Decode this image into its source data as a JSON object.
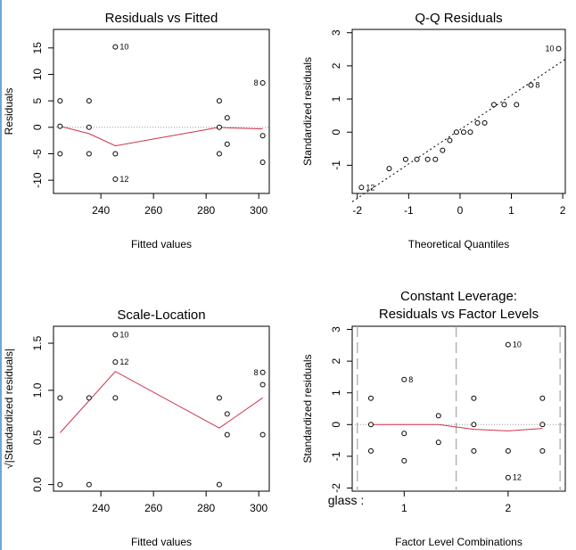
{
  "chart_data": [
    {
      "type": "scatter",
      "title": "Residuals vs Fitted",
      "xlabel": "Fitted values",
      "ylabel": "Residuals",
      "xlim": [
        222,
        304
      ],
      "ylim": [
        -12.5,
        18.5
      ],
      "xticks": [
        240,
        260,
        280,
        300
      ],
      "yticks": [
        -10,
        -5,
        0,
        5,
        10,
        15
      ],
      "refline": {
        "y": 0,
        "style": "dotted"
      },
      "points": [
        {
          "x": 224.5,
          "y": 5
        },
        {
          "x": 224.5,
          "y": 0.2
        },
        {
          "x": 224.5,
          "y": -5
        },
        {
          "x": 235.5,
          "y": 5
        },
        {
          "x": 235.5,
          "y": 0
        },
        {
          "x": 235.5,
          "y": -5
        },
        {
          "x": 245.5,
          "y": 15.2,
          "label": "10"
        },
        {
          "x": 245.5,
          "y": -5
        },
        {
          "x": 245.5,
          "y": -9.8,
          "label": "12"
        },
        {
          "x": 285,
          "y": 5
        },
        {
          "x": 285,
          "y": 0
        },
        {
          "x": 285,
          "y": -5
        },
        {
          "x": 288,
          "y": 1.8
        },
        {
          "x": 288,
          "y": -3.2
        },
        {
          "x": 301.5,
          "y": 8.4,
          "label": "8"
        },
        {
          "x": 301.5,
          "y": -1.6
        },
        {
          "x": 301.5,
          "y": -6.6
        }
      ],
      "smoother": [
        {
          "x": 224.5,
          "y": 0.2
        },
        {
          "x": 235.5,
          "y": -1.2
        },
        {
          "x": 245.5,
          "y": -3.5
        },
        {
          "x": 285,
          "y": 0
        },
        {
          "x": 288,
          "y": -0.1
        },
        {
          "x": 301.5,
          "y": -0.3
        }
      ]
    },
    {
      "type": "scatter",
      "title": "Q-Q Residuals",
      "xlabel": "Theoretical Quantiles",
      "ylabel": "Standardized residuals",
      "xlim": [
        -2.1,
        2.05
      ],
      "ylim": [
        -1.85,
        3.1
      ],
      "xticks": [
        -2,
        -1,
        0,
        1,
        2
      ],
      "yticks": [
        -1,
        0,
        1,
        2,
        3
      ],
      "refline": {
        "x1": -2.1,
        "y1": -2.1,
        "x2": 2.05,
        "y2": 2.2,
        "style": "dashed"
      },
      "points": [
        {
          "x": -1.92,
          "y": -1.67,
          "label": "12"
        },
        {
          "x": -1.38,
          "y": -1.1
        },
        {
          "x": -1.06,
          "y": -0.82
        },
        {
          "x": -0.84,
          "y": -0.82
        },
        {
          "x": -0.63,
          "y": -0.82
        },
        {
          "x": -0.48,
          "y": -0.82
        },
        {
          "x": -0.34,
          "y": -0.55
        },
        {
          "x": -0.2,
          "y": -0.25
        },
        {
          "x": -0.07,
          "y": 0
        },
        {
          "x": 0.07,
          "y": 0
        },
        {
          "x": 0.2,
          "y": 0
        },
        {
          "x": 0.34,
          "y": 0.28
        },
        {
          "x": 0.48,
          "y": 0.28
        },
        {
          "x": 0.66,
          "y": 0.83
        },
        {
          "x": 0.86,
          "y": 0.83
        },
        {
          "x": 1.1,
          "y": 0.83
        },
        {
          "x": 1.38,
          "y": 1.42,
          "label": "8"
        },
        {
          "x": 1.92,
          "y": 2.52,
          "label": "10"
        }
      ]
    },
    {
      "type": "scatter",
      "title": "Scale-Location",
      "xlabel": "Fitted values",
      "ylabel": "√|Standardized residuals|",
      "xlim": [
        222,
        304
      ],
      "ylim": [
        -0.07,
        1.68
      ],
      "xticks": [
        240,
        260,
        280,
        300
      ],
      "yticks": [
        0.0,
        0.5,
        1.0,
        1.5
      ],
      "ytick_labels": [
        "0.0",
        "0.5",
        "1.0",
        "1.5"
      ],
      "points": [
        {
          "x": 224.5,
          "y": 0.92
        },
        {
          "x": 224.5,
          "y": 0
        },
        {
          "x": 235.5,
          "y": 0.92
        },
        {
          "x": 235.5,
          "y": 0
        },
        {
          "x": 245.5,
          "y": 1.59,
          "label": "10"
        },
        {
          "x": 245.5,
          "y": 1.3,
          "label": "12"
        },
        {
          "x": 245.5,
          "y": 0.92
        },
        {
          "x": 285,
          "y": 0.92
        },
        {
          "x": 285,
          "y": 0
        },
        {
          "x": 288,
          "y": 0.75
        },
        {
          "x": 288,
          "y": 0.53
        },
        {
          "x": 301.5,
          "y": 1.19,
          "label": "8"
        },
        {
          "x": 301.5,
          "y": 1.06
        },
        {
          "x": 301.5,
          "y": 0.53
        }
      ],
      "smoother": [
        {
          "x": 224.5,
          "y": 0.55
        },
        {
          "x": 245.5,
          "y": 1.2
        },
        {
          "x": 285,
          "y": 0.6
        },
        {
          "x": 301.5,
          "y": 0.92
        }
      ]
    },
    {
      "type": "scatter",
      "title": [
        "Constant Leverage:",
        "Residuals vs Factor Levels"
      ],
      "xlabel": "Factor Level Combinations",
      "ylabel": "Standardized residuals",
      "factor_label": "glass :",
      "xlim": [
        0.5,
        2.55
      ],
      "ylim": [
        -2.1,
        3.1
      ],
      "xticks": [
        1,
        2
      ],
      "yticks": [
        -2,
        -1,
        0,
        1,
        2,
        3
      ],
      "separators": [
        0.55,
        1.5,
        2.5
      ],
      "refline": {
        "y": 0,
        "style": "dotted"
      },
      "points": [
        {
          "x": 0.68,
          "y": 0.83
        },
        {
          "x": 0.68,
          "y": 0
        },
        {
          "x": 0.68,
          "y": -0.83
        },
        {
          "x": 1.0,
          "y": 1.42,
          "label": "8"
        },
        {
          "x": 1.0,
          "y": -0.28
        },
        {
          "x": 1.0,
          "y": -1.14
        },
        {
          "x": 1.33,
          "y": 0.28
        },
        {
          "x": 1.33,
          "y": -0.56
        },
        {
          "x": 1.67,
          "y": 0.83
        },
        {
          "x": 1.67,
          "y": 0
        },
        {
          "x": 1.67,
          "y": -0.83
        },
        {
          "x": 2.0,
          "y": 2.52,
          "label": "10"
        },
        {
          "x": 2.0,
          "y": -0.83
        },
        {
          "x": 2.0,
          "y": -1.67,
          "label": "12"
        },
        {
          "x": 2.33,
          "y": 0.83
        },
        {
          "x": 2.33,
          "y": 0
        },
        {
          "x": 2.33,
          "y": -0.83
        }
      ],
      "smoother": [
        {
          "x": 0.68,
          "y": 0
        },
        {
          "x": 1.0,
          "y": 0
        },
        {
          "x": 1.33,
          "y": 0
        },
        {
          "x": 1.67,
          "y": -0.15
        },
        {
          "x": 2.0,
          "y": -0.2
        },
        {
          "x": 2.33,
          "y": -0.12
        }
      ]
    }
  ]
}
